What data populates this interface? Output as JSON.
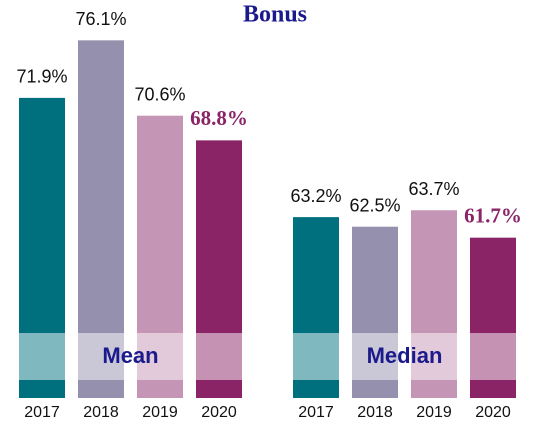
{
  "chart_data": {
    "type": "bar",
    "title": "Bonus",
    "categories": [
      "2017",
      "2018",
      "2019",
      "2020"
    ],
    "colors": [
      "#00707f",
      "#9490ad",
      "#c595b5",
      "#8a2466"
    ],
    "series": [
      {
        "name": "Mean",
        "values": [
          71.9,
          76.1,
          70.6,
          68.8
        ],
        "value_labels": [
          "71.9%",
          "76.1%",
          "70.6%",
          "68.8%"
        ]
      },
      {
        "name": "Median",
        "values": [
          63.2,
          62.5,
          63.7,
          61.7
        ],
        "value_labels": [
          "63.2%",
          "62.5%",
          "63.7%",
          "61.7%"
        ]
      }
    ],
    "ylim": [
      50,
      77
    ]
  }
}
